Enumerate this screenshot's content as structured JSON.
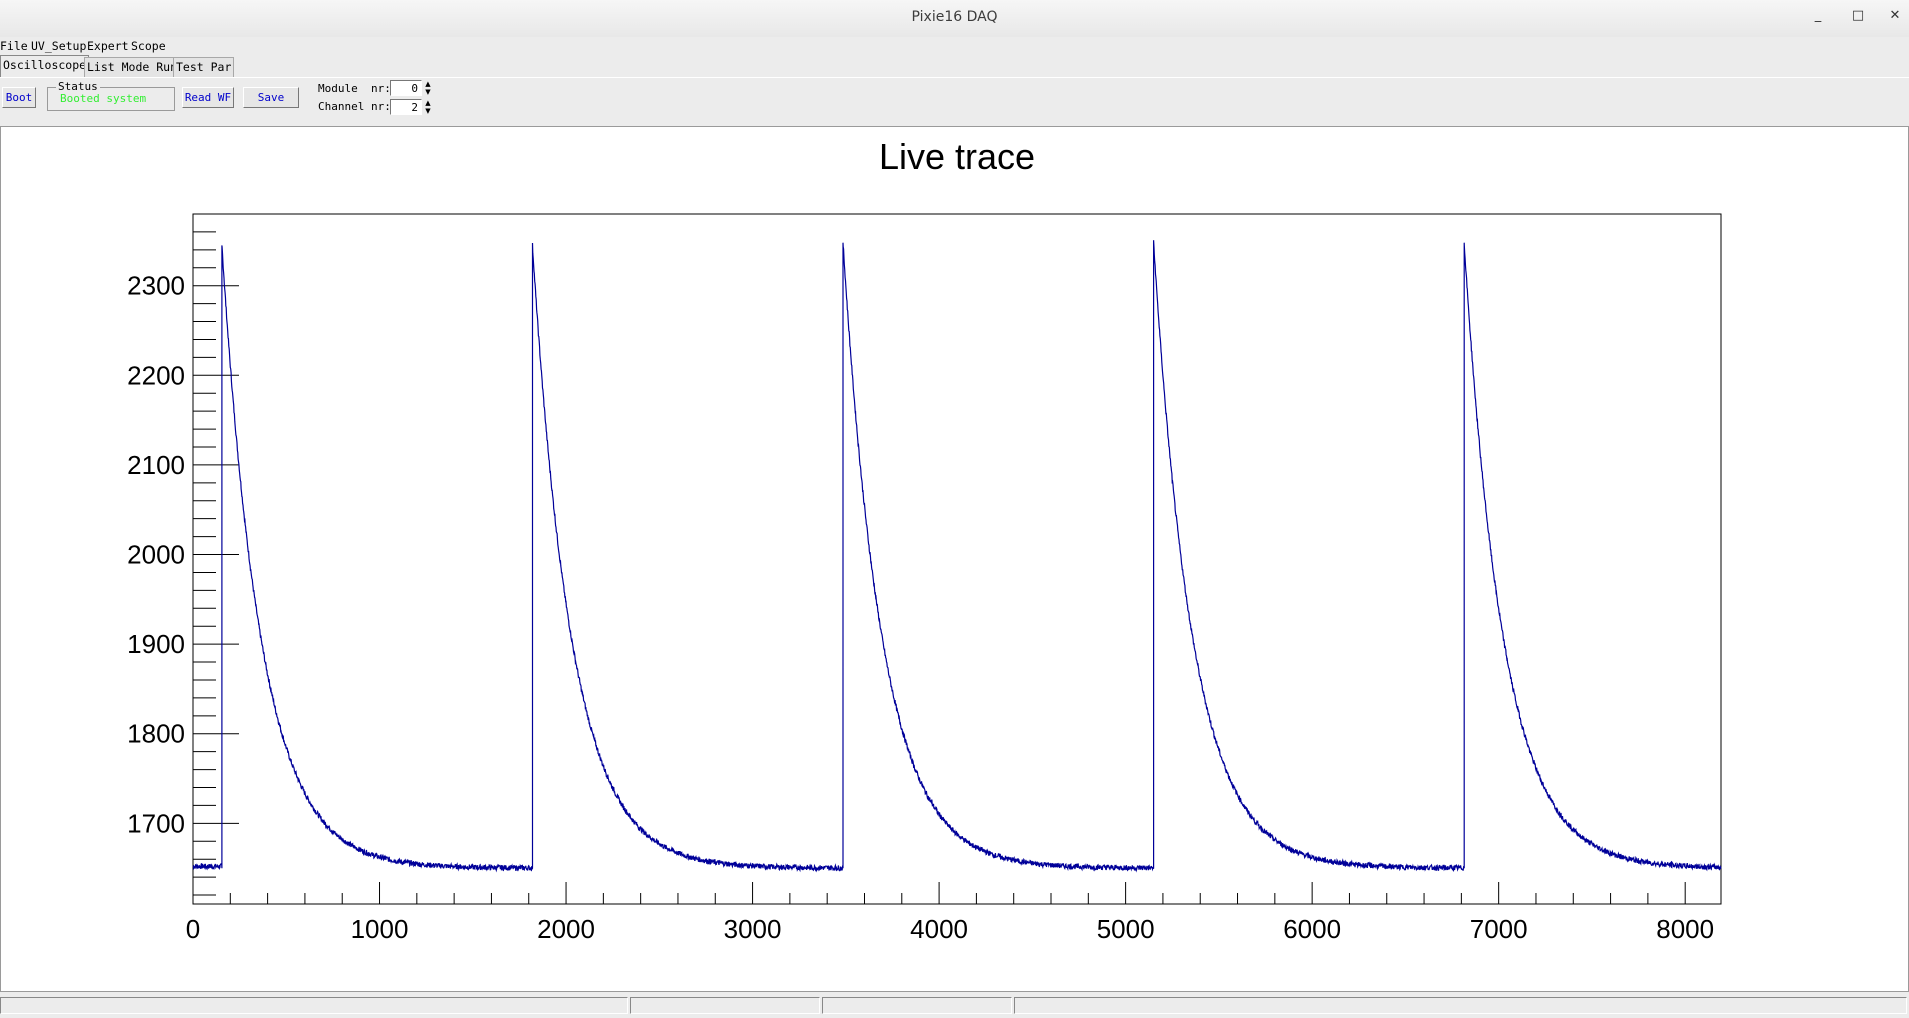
{
  "window": {
    "title": "Pixie16 DAQ",
    "min": "_",
    "max": "□",
    "close": "✕"
  },
  "menu": [
    "File",
    "UV_Setup",
    "Expert",
    "Scope"
  ],
  "tabs": [
    "Oscilloscope",
    "List Mode Run",
    "Test Par"
  ],
  "toolbar": {
    "boot_label": "Boot",
    "status_label": "Status",
    "status_text": "Booted system",
    "status_color": "#33ee33",
    "read_wf_label": "Read WF",
    "save_label": "Save",
    "module_label": "Module  nr:",
    "module_value": "0",
    "channel_label": "Channel nr:",
    "channel_value": "2"
  },
  "chart_data": {
    "type": "line",
    "title": "Live trace",
    "xlabel": "",
    "ylabel": "",
    "xlim": [
      0,
      8192
    ],
    "ylim": [
      1610,
      2380
    ],
    "xticks": [
      0,
      1000,
      2000,
      3000,
      4000,
      5000,
      6000,
      7000,
      8000
    ],
    "yticks": [
      1700,
      1800,
      1900,
      2000,
      2100,
      2200,
      2300
    ],
    "line_color": "#000099",
    "series": [
      {
        "baseline": 1650,
        "pulses": [
          {
            "start": 155,
            "peak": 2345
          },
          {
            "start": 1820,
            "peak": 2345
          },
          {
            "start": 3485,
            "peak": 2348
          },
          {
            "start": 5150,
            "peak": 2348
          },
          {
            "start": 6815,
            "peak": 2348
          }
        ],
        "decay_samples": 210,
        "pretrigger_value": 1652
      }
    ]
  }
}
